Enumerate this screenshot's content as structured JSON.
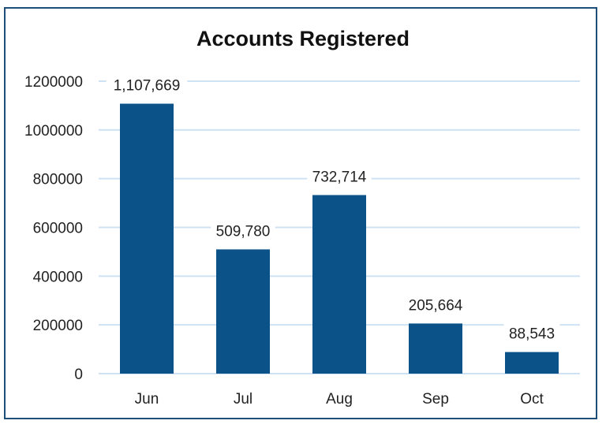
{
  "chart_data": {
    "type": "bar",
    "title": "Accounts Registered",
    "categories": [
      "Jun",
      "Jul",
      "Aug",
      "Sep",
      "Oct"
    ],
    "values": [
      1107669,
      509780,
      732714,
      205664,
      88543
    ],
    "data_labels": [
      "1,107,669",
      "509,780",
      "732,714",
      "205,664",
      "88,543"
    ],
    "yticks": [
      0,
      200000,
      400000,
      600000,
      800000,
      1000000,
      1200000
    ],
    "ylim": [
      0,
      1200000
    ],
    "xlabel": "",
    "ylabel": "",
    "grid": true,
    "colors": {
      "bar": "#0b5289",
      "grid": "#cfe2f3",
      "frame": "#1f4e79"
    }
  }
}
